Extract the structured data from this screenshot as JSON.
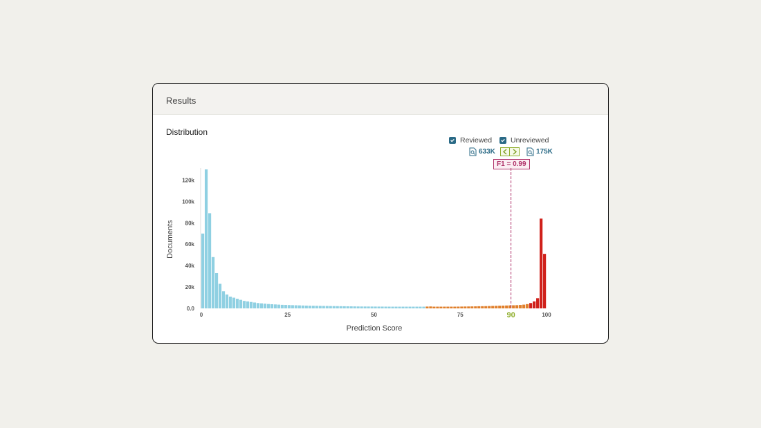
{
  "card": {
    "title": "Results",
    "section": "Distribution"
  },
  "legend": {
    "reviewed": "Reviewed",
    "unreviewed": "Unreviewed"
  },
  "counts": {
    "below": "633K",
    "above": "175K"
  },
  "icons": {
    "checkbox": "check-icon",
    "doc": "document-search-icon",
    "prev": "chevron-left-icon",
    "next": "chevron-right-icon"
  },
  "metric": {
    "f1_label": "F1 = 0.99"
  },
  "colors": {
    "low": "#8fd0e2",
    "high": "#e07f2b",
    "top": "#d0211b",
    "threshold": "#8fae2c",
    "accent": "#2a6a86"
  },
  "chart_data": {
    "type": "bar",
    "xlabel": "Prediction Score",
    "ylabel": "Documents",
    "xlim": [
      0,
      100
    ],
    "ylim": [
      0,
      130000
    ],
    "xticks": [
      0,
      25,
      50,
      75,
      100
    ],
    "yticks": [
      {
        "v": 0,
        "label": "0.0"
      },
      {
        "v": 20000,
        "label": "20k"
      },
      {
        "v": 40000,
        "label": "40k"
      },
      {
        "v": 60000,
        "label": "60k"
      },
      {
        "v": 80000,
        "label": "80k"
      },
      {
        "v": 100000,
        "label": "100k"
      },
      {
        "v": 120000,
        "label": "120k"
      }
    ],
    "threshold": 90,
    "threshold_label": "90",
    "values": [
      70000,
      130000,
      89000,
      48000,
      33000,
      23000,
      16000,
      13000,
      11000,
      10000,
      9000,
      8000,
      7000,
      6500,
      6000,
      5500,
      5000,
      4700,
      4400,
      4100,
      3900,
      3700,
      3500,
      3300,
      3200,
      3100,
      3000,
      2900,
      2800,
      2700,
      2600,
      2500,
      2450,
      2400,
      2350,
      2300,
      2250,
      2200,
      2150,
      2100,
      2050,
      2000,
      1950,
      1900,
      1850,
      1800,
      1780,
      1760,
      1740,
      1720,
      1700,
      1680,
      1660,
      1640,
      1620,
      1600,
      1600,
      1600,
      1600,
      1600,
      1600,
      1600,
      1600,
      1600,
      1600,
      1700,
      1800,
      1600,
      1600,
      1600,
      1600,
      1600,
      1600,
      1600,
      1650,
      1700,
      1750,
      1800,
      1850,
      1900,
      2000,
      2050,
      2100,
      2200,
      2300,
      2400,
      2500,
      2600,
      2700,
      2800,
      2900,
      3000,
      3200,
      3500,
      4000,
      5000,
      6500,
      9500,
      84000,
      51000
    ]
  }
}
